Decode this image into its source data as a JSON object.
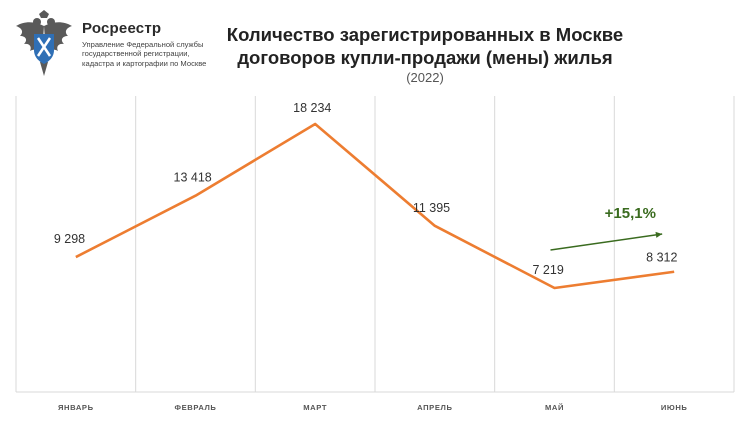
{
  "header": {
    "org_name": "Росреестр",
    "org_desc_line1": "Управление Федеральной службы",
    "org_desc_line2": "государственной регистрации,",
    "org_desc_line3": "кадастра и картографии по Москве",
    "logo_icon": "double-headed-eagle-emblem"
  },
  "chart_data": {
    "type": "line",
    "title_line1": "Количество зарегистрированных в Москве",
    "title_line2": "договоров купли-продажи (мены) жилья",
    "subtitle": "(2022)",
    "categories": [
      "ЯНВАРЬ",
      "ФЕВРАЛЬ",
      "МАРТ",
      "АПРЕЛЬ",
      "МАЙ",
      "ИЮНЬ"
    ],
    "series": [
      {
        "values": [
          9298,
          13418,
          18234,
          11395,
          7219,
          8312
        ],
        "labels": [
          "9 298",
          "13 418",
          "18 234",
          "11 395",
          "7 219",
          "8 312"
        ],
        "color": "#ED7D31"
      }
    ],
    "annotation": {
      "text": "+15,1%",
      "color": "#3A6B1F",
      "from": "МАЙ",
      "to": "ИЮНЬ"
    },
    "grid": "vertical",
    "gridline_color": "#D9D9D9"
  }
}
